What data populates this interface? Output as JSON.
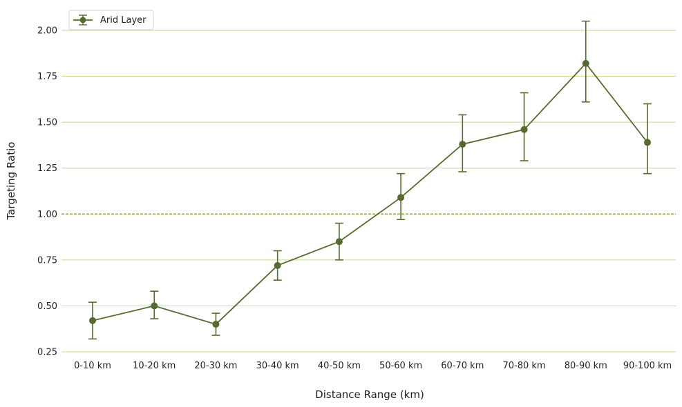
{
  "chart_data": {
    "type": "line",
    "title": "",
    "xlabel": "Distance Range (km)",
    "ylabel": "Targeting Ratio",
    "categories": [
      "0-10 km",
      "10-20 km",
      "20-30 km",
      "30-40 km",
      "40-50 km",
      "50-60 km",
      "60-70 km",
      "70-80 km",
      "80-90 km",
      "90-100 km"
    ],
    "ylim": [
      0.25,
      2.12
    ],
    "yticks": [
      "0.25",
      "0.50",
      "0.75",
      "1.00",
      "1.25",
      "1.50",
      "1.75",
      "2.00"
    ],
    "grid": "horizontal",
    "reference_line": 1.0,
    "legend_position": "top-left",
    "series": [
      {
        "name": "Arid Layer",
        "values": [
          0.42,
          0.5,
          0.4,
          0.72,
          0.85,
          1.09,
          1.38,
          1.46,
          1.82,
          1.39
        ],
        "error_lower": [
          0.32,
          0.43,
          0.34,
          0.64,
          0.75,
          0.97,
          1.23,
          1.29,
          1.61,
          1.22
        ],
        "error_upper": [
          0.52,
          0.58,
          0.46,
          0.8,
          0.95,
          1.22,
          1.54,
          1.66,
          2.05,
          1.6
        ]
      }
    ],
    "colors": {
      "series": "#556b2f",
      "grid": "#c5d98a",
      "reference": "#6b9a2a"
    }
  }
}
